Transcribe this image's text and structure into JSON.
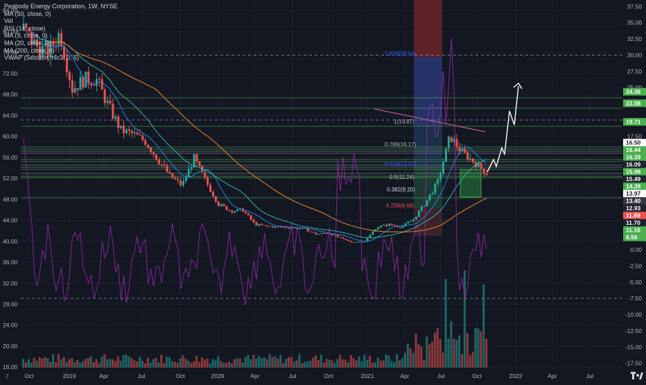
{
  "header": {
    "symbol_line": "Peabody Energy Corporation, 1W, NYSE",
    "indicators": [
      "MA (50, close, 0)",
      "Vol",
      "RSI (14, close)",
      "MA (9, close, 0)",
      "MA (20, close, 0)",
      "MA (200, close, 0)",
      "VWAP (Session, hlc3, 0, 5)"
    ]
  },
  "colors": {
    "background": "#131722",
    "grid": "#1e222d",
    "up": "#26a69a",
    "down": "#ef5350",
    "ma_green": "#2fb8a0",
    "ma_orange": "#f08a24",
    "rsi": "#9c27b0",
    "level_lines": "#4caf50",
    "projection": "#ffffff"
  },
  "chart_data": {
    "type": "candlestick",
    "title": "Peabody Energy Corporation, 1W, NYSE",
    "x_ticks": [
      "Oct",
      "2019",
      "Apr",
      "Jul",
      "Oct",
      "2020",
      "Apr",
      "Jul",
      "Oct",
      "2021",
      "Apr",
      "Jul",
      "Oct",
      "2022",
      "Apr",
      "Jul"
    ],
    "left_axis": {
      "ticks": [
        84.0,
        80.0,
        76.0,
        72.0,
        68.0,
        64.0,
        60.0,
        56.0,
        52.0,
        48.0,
        44.0,
        40.0,
        36.0,
        32.0,
        28.0,
        24.0,
        20.0,
        16.0
      ],
      "range": [
        15.5,
        86.0
      ]
    },
    "right_axis": {
      "ticks": [
        "37.50",
        "35.00",
        "32.50",
        "30.00",
        "27.50",
        "25.00",
        "22.50",
        "20.00",
        "17.50",
        "15.00",
        "12.50",
        "10.00",
        "7.50",
        "5.00",
        "2.50",
        "0.00",
        "-2.50",
        "-5.00",
        "-7.50",
        "-10.00",
        "-12.50",
        "-15.00",
        "-17.50"
      ],
      "range": [
        -18.5,
        38.5
      ]
    },
    "price_approx": {
      "x": [
        0,
        5,
        10,
        15,
        20,
        25,
        30,
        35,
        40,
        45,
        50,
        55,
        60,
        65,
        70,
        75,
        80,
        85,
        90,
        95,
        100,
        105,
        110,
        115,
        120,
        125,
        130,
        135,
        140,
        145,
        150,
        155,
        160,
        165,
        170,
        175,
        180,
        185,
        190
      ],
      "y": [
        34.0,
        31.5,
        30.3,
        33.5,
        24.8,
        26.3,
        26.2,
        22.0,
        18.4,
        17.8,
        16.7,
        14.0,
        11.4,
        9.9,
        14.1,
        10.4,
        7.0,
        6.0,
        6.1,
        3.9,
        3.6,
        3.5,
        3.4,
        3.2,
        2.4,
        2.6,
        1.8,
        1.1,
        1.3,
        3.5,
        3.9,
        3.5,
        4.7,
        7.3,
        10.5,
        17.5,
        15.0,
        13.5,
        11.8
      ]
    },
    "fib_levels": [
      {
        "label": "1.618(30.54)",
        "value": 30.54
      },
      {
        "label": "1(19.87)",
        "value": 19.87
      },
      {
        "label": "0.786(16.17)",
        "value": 16.17
      },
      {
        "label": "0.618(13.27)",
        "value": 13.27
      },
      {
        "label": "0.5(11.24)",
        "value": 11.24
      },
      {
        "label": "0.382(9.20)",
        "value": 9.2
      },
      {
        "label": "0.236(6.68)",
        "value": 6.68
      }
    ],
    "price_tags": [
      {
        "text": "24.36",
        "value": 24.36,
        "color": "#4caf50"
      },
      {
        "text": "22.58",
        "value": 22.58,
        "color": "#4caf50"
      },
      {
        "text": "19.71",
        "value": 19.71,
        "color": "#4caf50"
      },
      {
        "text": "16.50",
        "value": 16.5,
        "color": "#ffffff"
      },
      {
        "text": "16.44",
        "value": 16.44,
        "color": "#4caf50"
      },
      {
        "text": "16.39",
        "value": 16.39,
        "color": "#4caf50"
      },
      {
        "text": "16.09",
        "value": 16.09,
        "color": "#1e222d"
      },
      {
        "text": "15.98",
        "value": 15.98,
        "color": "#4caf50"
      },
      {
        "text": "15.49",
        "value": 15.49,
        "color": "#1e222d"
      },
      {
        "text": "14.28",
        "value": 14.28,
        "color": "#4caf50"
      },
      {
        "text": "13.97",
        "value": 13.97,
        "color": "#ffffff"
      },
      {
        "text": "13.40",
        "value": 13.4,
        "color": "#363a45"
      },
      {
        "text": "12.93",
        "value": 12.93,
        "color": "#1e222d"
      },
      {
        "text": "11.89",
        "value": 11.89,
        "color": "#ef5350"
      },
      {
        "text": "11.70",
        "value": 11.7,
        "color": "#1e222d"
      },
      {
        "text": "11.16",
        "value": 11.16,
        "color": "#4caf50"
      },
      {
        "text": "8.56",
        "value": 8.56,
        "color": "#4caf50"
      }
    ],
    "dashed_levels": [
      30.0,
      20.0,
      -7.5
    ]
  }
}
